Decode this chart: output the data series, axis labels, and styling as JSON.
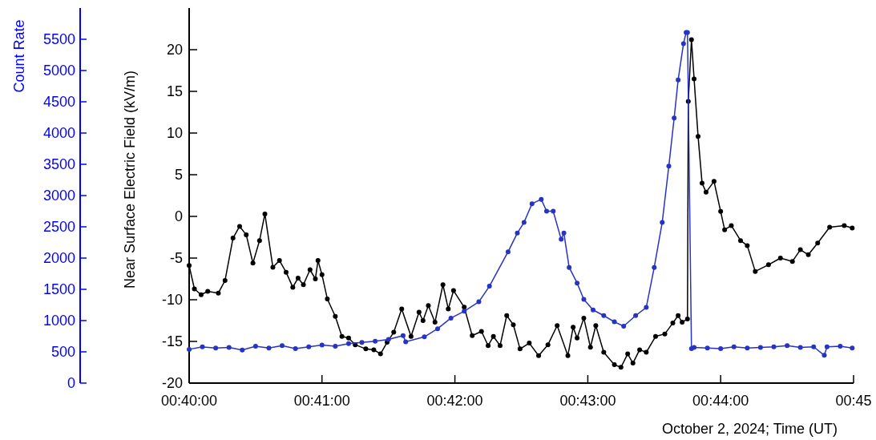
{
  "chart_data": {
    "type": "line",
    "xlabel": "October 2, 2024; Time (UT)",
    "ylabel": "Near Surface Electric Field (kV/m)",
    "y2label": "Count Rate",
    "xlim": [
      0.66667,
      0.75
    ],
    "xticks": [
      {
        "value": 0.66667,
        "label": "00:40:00"
      },
      {
        "value": 0.68333,
        "label": "00:41:00"
      },
      {
        "value": 0.7,
        "label": "00:42:00"
      },
      {
        "value": 0.71667,
        "label": "00:43:00"
      },
      {
        "value": 0.73333,
        "label": "00:44:00"
      },
      {
        "value": 0.75,
        "label": "00:45"
      }
    ],
    "ylim": [
      -20,
      25
    ],
    "yticks": [
      -20,
      -15,
      -10,
      -5,
      0,
      5,
      10,
      15,
      20
    ],
    "y2lim": [
      0,
      6000
    ],
    "y2ticks": [
      0,
      500,
      1000,
      1500,
      2000,
      2500,
      3000,
      3500,
      4000,
      4500,
      5000,
      5500
    ],
    "marker": "circle",
    "grid": false,
    "series": [
      {
        "color": "#000000",
        "x": [
          0.66667,
          0.66733,
          0.66817,
          0.669,
          0.67033,
          0.67117,
          0.67217,
          0.673,
          0.67383,
          0.67467,
          0.6755,
          0.67617,
          0.67717,
          0.678,
          0.67883,
          0.67967,
          0.68033,
          0.681,
          0.68183,
          0.6825,
          0.68283,
          0.68333,
          0.684,
          0.685,
          0.68583,
          0.68667,
          0.6875,
          0.68883,
          0.68983,
          0.69067,
          0.6915,
          0.69233,
          0.69333,
          0.6945,
          0.6955,
          0.696,
          0.69667,
          0.6975,
          0.6985,
          0.69917,
          0.69983,
          0.70117,
          0.70217,
          0.70333,
          0.70417,
          0.70483,
          0.70567,
          0.7065,
          0.70733,
          0.70817,
          0.70933,
          0.7105,
          0.71167,
          0.71283,
          0.71417,
          0.71483,
          0.71533,
          0.71617,
          0.717,
          0.71767,
          0.71867,
          0.72,
          0.72083,
          0.72167,
          0.72233,
          0.72317,
          0.724,
          0.72517,
          0.72633,
          0.72733,
          0.728,
          0.7285,
          0.72917,
          0.72927,
          0.72967,
          0.73,
          0.7305,
          0.731,
          0.7315,
          0.7325,
          0.73333,
          0.73383,
          0.73467,
          0.73583,
          0.73667,
          0.73767,
          0.73933,
          0.74083,
          0.74233,
          0.74333,
          0.74433,
          0.7455,
          0.747,
          0.74883,
          0.74983
        ],
        "values": [
          -5.9,
          -8.7,
          -9.4,
          -9.0,
          -9.2,
          -7.7,
          -2.6,
          -1.2,
          -2.2,
          -5.6,
          -2.9,
          0.3,
          -6.1,
          -5.3,
          -6.7,
          -8.5,
          -7.4,
          -8.2,
          -6.4,
          -7.5,
          -5.3,
          -7.0,
          -9.9,
          -12.0,
          -14.4,
          -14.6,
          -15.4,
          -15.9,
          -16.0,
          -16.5,
          -15.1,
          -13.9,
          -11.1,
          -14.4,
          -11.5,
          -12.5,
          -10.7,
          -12.7,
          -8.2,
          -11.1,
          -8.9,
          -10.9,
          -14.3,
          -13.8,
          -15.5,
          -14.4,
          -15.5,
          -11.9,
          -13.0,
          -15.9,
          -15.2,
          -16.7,
          -15.4,
          -13.1,
          -16.7,
          -13.3,
          -14.6,
          -12.2,
          -15.7,
          -13.1,
          -16.3,
          -17.8,
          -18.1,
          -16.5,
          -17.6,
          -16.0,
          -16.3,
          -14.4,
          -14.1,
          -12.8,
          -11.9,
          -12.7,
          -12.3,
          13.8,
          21.2,
          16.5,
          9.6,
          4.0,
          2.9,
          4.2,
          0.6,
          -1.6,
          -1.1,
          -2.9,
          -3.5,
          -6.6,
          -5.8,
          -5.0,
          -5.4,
          -4.0,
          -4.6,
          -3.2,
          -1.3,
          -1.1,
          -1.4
        ]
      },
      {
        "color": "#2633c4",
        "axis": "y2",
        "x": [
          0.66667,
          0.66833,
          0.67,
          0.67167,
          0.67333,
          0.675,
          0.67667,
          0.67833,
          0.68,
          0.68167,
          0.68333,
          0.685,
          0.68667,
          0.68833,
          0.69,
          0.69167,
          0.6935,
          0.69383,
          0.69617,
          0.69783,
          0.6995,
          0.70117,
          0.703,
          0.70433,
          0.70667,
          0.70783,
          0.70867,
          0.70967,
          0.71083,
          0.7115,
          0.71233,
          0.71333,
          0.71367,
          0.71433,
          0.71533,
          0.71617,
          0.71733,
          0.71867,
          0.72,
          0.72117,
          0.72267,
          0.724,
          0.725,
          0.726,
          0.72683,
          0.7275,
          0.728,
          0.72867,
          0.729,
          0.72917,
          0.72967,
          0.73,
          0.73167,
          0.73333,
          0.735,
          0.73667,
          0.73833,
          0.74,
          0.74167,
          0.74333,
          0.745,
          0.74633,
          0.74667,
          0.74833,
          0.74983
        ],
        "values": [
          540,
          580,
          560,
          570,
          530,
          590,
          560,
          600,
          550,
          580,
          610,
          590,
          630,
          650,
          670,
          700,
          760,
          660,
          740,
          870,
          1040,
          1150,
          1300,
          1550,
          2100,
          2400,
          2570,
          2870,
          2940,
          2750,
          2750,
          2300,
          2400,
          1850,
          1600,
          1340,
          1170,
          1080,
          980,
          910,
          1080,
          1210,
          1850,
          2570,
          3470,
          4240,
          4850,
          5430,
          5610,
          5610,
          550,
          570,
          560,
          550,
          580,
          560,
          570,
          580,
          600,
          570,
          580,
          444,
          580,
          590,
          560
        ]
      }
    ]
  }
}
